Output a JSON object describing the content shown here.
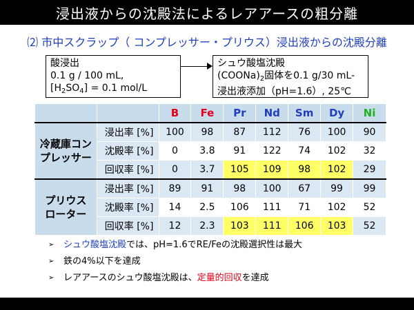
{
  "title": "浸出液からの沈殿法によるレアアースの粗分離",
  "subtitle": "⑵ 市中スクラップ（ コンプレッサー・プリウス）浸出液からの沈殿分離",
  "box_left": {
    "line1": "酸浸出",
    "line2": "0.1 g / 100 mL,",
    "line3_pre": "[H",
    "line3_sub1": "2",
    "line3_mid": "SO",
    "line3_sub2": "4",
    "line3_post": "] = 0.1 mol/L"
  },
  "box_right": {
    "line1": "シュウ酸塩沈殿",
    "line2_pre": "(COONa)",
    "line2_sub": "2",
    "line2_post": "固体を0.1 g/30 mL-",
    "line3": "浸出液添加（pH=1.6）, 25℃"
  },
  "table": {
    "headers": [
      "B",
      "Fe",
      "Pr",
      "Nd",
      "Sm",
      "Dy",
      "Ni"
    ],
    "header_colors": [
      "#e0001a",
      "#e0001a",
      "#1f3fbf",
      "#1f3fbf",
      "#1f3fbf",
      "#1f3fbf",
      "#20b020"
    ],
    "groups": [
      {
        "name_line1": "冷蔵庫コン",
        "name_line2": "プレッサー",
        "rows": [
          {
            "label": "浸出率 [%]",
            "values": [
              "100",
              "98",
              "87",
              "112",
              "76",
              "100",
              "90"
            ],
            "highlight": [
              false,
              false,
              false,
              false,
              false,
              false,
              false
            ]
          },
          {
            "label": "沈殿率 [%]",
            "values": [
              "0",
              "3.8",
              "91",
              "122",
              "74",
              "102",
              "32"
            ],
            "highlight": [
              false,
              false,
              false,
              false,
              false,
              false,
              false
            ]
          },
          {
            "label": "回収率 [%]",
            "values": [
              "0",
              "3.7",
              "105",
              "109",
              "98",
              "102",
              "29"
            ],
            "highlight": [
              false,
              false,
              true,
              true,
              true,
              true,
              false
            ]
          }
        ]
      },
      {
        "name_line1": "プリウス",
        "name_line2": "ローター",
        "rows": [
          {
            "label": "浸出率 [%]",
            "values": [
              "89",
              "91",
              "98",
              "100",
              "67",
              "99",
              "99"
            ],
            "highlight": [
              false,
              false,
              false,
              false,
              false,
              false,
              false
            ]
          },
          {
            "label": "沈殿率 [%]",
            "values": [
              "14",
              "2.5",
              "106",
              "111",
              "71",
              "102",
              "52"
            ],
            "highlight": [
              false,
              false,
              false,
              false,
              false,
              false,
              false
            ]
          },
          {
            "label": "回収率 [%]",
            "values": [
              "12",
              "2.3",
              "103",
              "111",
              "106",
              "103",
              "52"
            ],
            "highlight": [
              false,
              false,
              true,
              true,
              true,
              true,
              false
            ]
          }
        ]
      }
    ]
  },
  "bullets": {
    "b1_blue": "シュウ酸塩沈殿",
    "b1_rest": "では、pH=1.6でRE/Feの沈殿選択性は最大",
    "b2": "鉄の4%以下を達成",
    "b3_pre": "レアアースのシュウ酸塩沈殿は、",
    "b3_red": "定量的回収",
    "b3_post": "を達成",
    "marker": "➢"
  },
  "colors": {
    "header_bg": "#c9dcec",
    "row_alt": "#dbe7f3",
    "highlight": "#ffff66",
    "accent_blue": "#1f3fbf",
    "accent_red": "#e0001a"
  }
}
